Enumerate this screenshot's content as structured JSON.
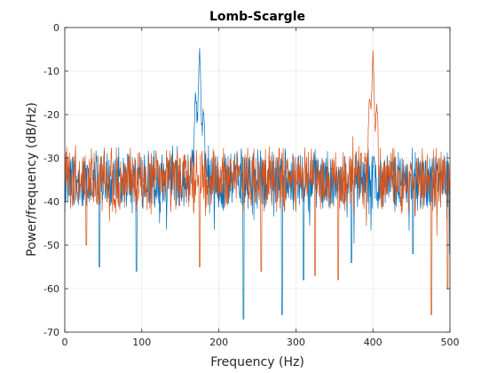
{
  "chart_data": {
    "type": "line",
    "title": "Lomb-Scargle",
    "xlabel": "Frequency (Hz)",
    "ylabel": "Power/frequency (dB/Hz)",
    "xlim": [
      0,
      500
    ],
    "ylim": [
      -70,
      0
    ],
    "xticks": [
      0,
      100,
      200,
      300,
      400,
      500
    ],
    "yticks": [
      0,
      -10,
      -20,
      -30,
      -40,
      -50,
      -60,
      -70
    ],
    "grid": true,
    "legend": "none",
    "colors": {
      "series1": "#0072BD",
      "series2": "#D95319"
    },
    "series": [
      {
        "values_description_free": true,
        "baseline_db": -35,
        "spread_db": 6,
        "peaks": [
          {
            "x": 175,
            "y": -6
          },
          {
            "x": 170,
            "y": -17
          },
          {
            "x": 180,
            "y": -20
          }
        ],
        "dips": [
          {
            "x": 45,
            "y": -55
          },
          {
            "x": 93,
            "y": -56
          },
          {
            "x": 232,
            "y": -67
          },
          {
            "x": 282,
            "y": -66
          },
          {
            "x": 310,
            "y": -58
          },
          {
            "x": 372,
            "y": -54
          },
          {
            "x": 452,
            "y": -52
          },
          {
            "x": 500,
            "y": -52
          }
        ]
      },
      {
        "values_description_free": true,
        "baseline_db": -35,
        "spread_db": 6,
        "peaks": [
          {
            "x": 400,
            "y": -6
          },
          {
            "x": 396,
            "y": -17
          },
          {
            "x": 405,
            "y": -20
          }
        ],
        "dips": [
          {
            "x": 28,
            "y": -50
          },
          {
            "x": 175,
            "y": -55
          },
          {
            "x": 255,
            "y": -56
          },
          {
            "x": 325,
            "y": -57
          },
          {
            "x": 355,
            "y": -58
          },
          {
            "x": 476,
            "y": -66
          },
          {
            "x": 497,
            "y": -60
          }
        ]
      }
    ]
  }
}
